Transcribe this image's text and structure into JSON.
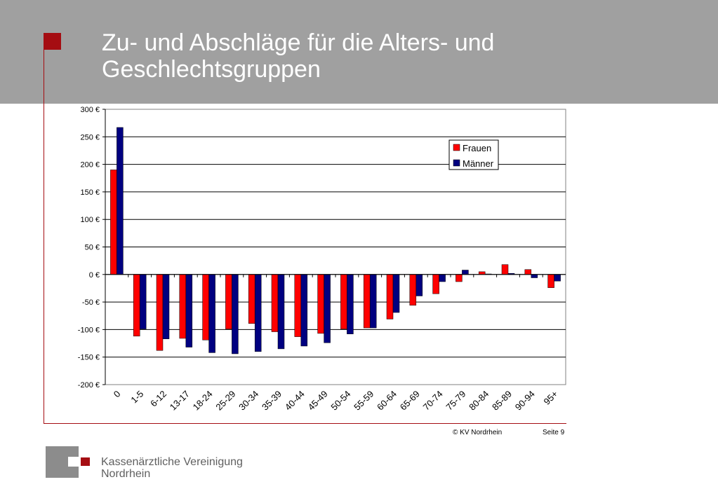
{
  "slide": {
    "title": "Zu- und Abschläge für die Alters- und Geschlechtsgruppen",
    "copyright": "© KV Nordrhein",
    "page_label": "Seite 9"
  },
  "logo": {
    "line1": "Kassenärztliche Vereinigung",
    "line2": "Nordrhein"
  },
  "colors": {
    "header": "#a0a0a0",
    "accent": "#a50d12",
    "frauen": "#ff0000",
    "maenner": "#000080"
  },
  "chart_data": {
    "type": "bar",
    "categories": [
      "0",
      "1-5",
      "6-12",
      "13-17",
      "18-24",
      "25-29",
      "30-34",
      "35-39",
      "40-44",
      "45-49",
      "50-54",
      "55-59",
      "60-64",
      "65-69",
      "70-74",
      "75-79",
      "80-84",
      "85-89",
      "90-94",
      "95+"
    ],
    "series": [
      {
        "name": "Frauen",
        "color": "#ff0000",
        "values": [
          190,
          -112,
          -138,
          -116,
          -119,
          -99,
          -89,
          -104,
          -113,
          -107,
          -99,
          -97,
          -81,
          -56,
          -35,
          -13,
          5,
          18,
          9,
          -24
        ]
      },
      {
        "name": "Männer",
        "color": "#000080",
        "values": [
          267,
          -99,
          -117,
          -132,
          -142,
          -144,
          -140,
          -135,
          -130,
          -124,
          -108,
          -97,
          -69,
          -39,
          -13,
          8,
          1,
          2,
          -6,
          -12
        ]
      }
    ],
    "yticks": [
      "300 €",
      "250 €",
      "200 €",
      "150 €",
      "100 €",
      "50 €",
      "0 €",
      "-50 €",
      "-100 €",
      "-150 €",
      "-200 €"
    ],
    "ylim": [
      -200,
      300
    ],
    "ystep": 50,
    "grid": true,
    "legend": "top-right"
  }
}
